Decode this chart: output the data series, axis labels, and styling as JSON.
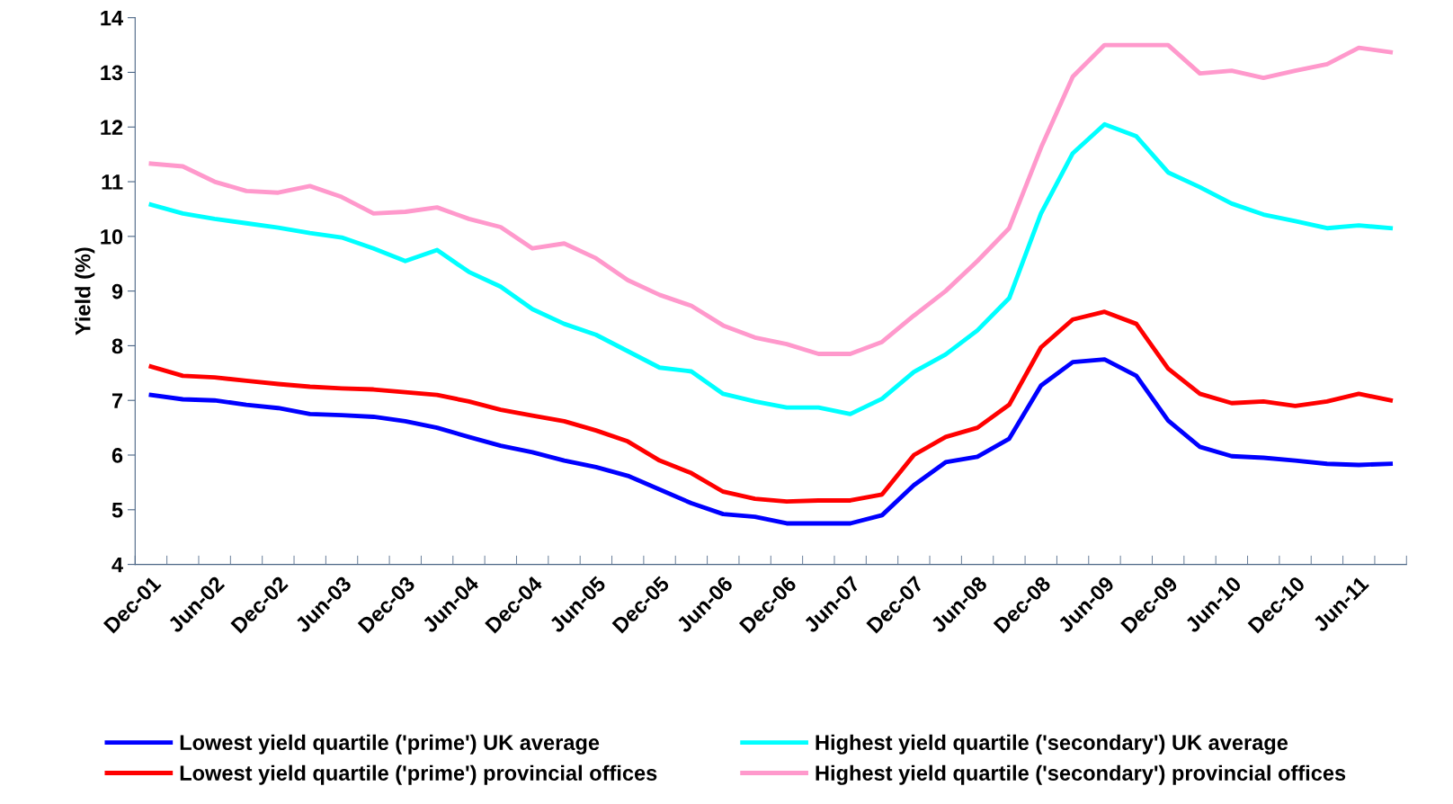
{
  "chart_data": {
    "type": "line",
    "ylabel": "Yield (%)",
    "categories": [
      "Dec-01",
      null,
      "Jun-02",
      null,
      "Dec-02",
      null,
      "Jun-03",
      null,
      "Dec-03",
      null,
      "Jun-04",
      null,
      "Dec-04",
      null,
      "Jun-05",
      null,
      "Dec-05",
      null,
      "Jun-06",
      null,
      "Dec-06",
      null,
      "Jun-07",
      null,
      "Dec-07",
      null,
      "Jun-08",
      null,
      "Dec-08",
      null,
      "Jun-09",
      null,
      "Dec-09",
      null,
      "Jun-10",
      null,
      "Dec-10",
      null,
      "Jun-11",
      null
    ],
    "series": [
      {
        "name": "Lowest yield quartile ('prime') UK average",
        "color": "#0000ff",
        "values": [
          7.1,
          7.02,
          7.0,
          6.92,
          6.86,
          6.75,
          6.73,
          6.7,
          6.62,
          6.5,
          6.33,
          6.17,
          6.05,
          5.9,
          5.78,
          5.62,
          5.37,
          5.12,
          4.92,
          4.87,
          4.75,
          4.75,
          4.75,
          4.9,
          5.45,
          5.87,
          5.97,
          6.3,
          7.27,
          7.7,
          7.75,
          7.45,
          6.63,
          6.15,
          5.98,
          5.95,
          5.9,
          5.84,
          5.82,
          5.84
        ]
      },
      {
        "name": "Highest yield quartile ('secondary') UK average",
        "color": "#00ffff",
        "values": [
          10.58,
          10.42,
          10.32,
          10.24,
          10.16,
          10.06,
          9.98,
          9.78,
          9.55,
          9.75,
          9.35,
          9.08,
          8.67,
          8.4,
          8.2,
          7.9,
          7.6,
          7.53,
          7.12,
          6.98,
          6.87,
          6.87,
          6.75,
          7.03,
          7.52,
          7.84,
          8.28,
          8.87,
          10.42,
          11.52,
          12.05,
          11.83,
          11.17,
          10.9,
          10.6,
          10.4,
          10.28,
          10.15,
          10.2,
          10.15
        ]
      },
      {
        "name": "Lowest yield quartile ('prime') provincial offices",
        "color": "#ff0000",
        "values": [
          7.62,
          7.45,
          7.42,
          7.36,
          7.3,
          7.25,
          7.22,
          7.2,
          7.15,
          7.1,
          6.98,
          6.83,
          6.72,
          6.62,
          6.45,
          6.25,
          5.9,
          5.67,
          5.33,
          5.2,
          5.15,
          5.17,
          5.17,
          5.28,
          6.0,
          6.33,
          6.5,
          6.92,
          7.97,
          8.48,
          8.62,
          8.4,
          7.58,
          7.12,
          6.95,
          6.98,
          6.9,
          6.98,
          7.12,
          7.0
        ]
      },
      {
        "name": "Highest yield quartile ('secondary') provincial offices",
        "color": "#ff99cc",
        "values": [
          11.33,
          11.28,
          11.0,
          10.83,
          10.8,
          10.92,
          10.72,
          10.42,
          10.45,
          10.53,
          10.32,
          10.17,
          9.78,
          9.87,
          9.6,
          9.2,
          8.93,
          8.73,
          8.37,
          8.15,
          8.03,
          7.85,
          7.85,
          8.07,
          8.55,
          9.0,
          9.55,
          10.15,
          11.62,
          12.92,
          13.5,
          13.5,
          13.5,
          12.98,
          13.03,
          12.9,
          13.03,
          13.15,
          13.45,
          13.37
        ]
      }
    ],
    "ylim": [
      4,
      14
    ],
    "yticks": [
      4,
      5,
      6,
      7,
      8,
      9,
      10,
      11,
      12,
      13,
      14
    ],
    "grid": false,
    "legend": "bottom",
    "marker": "none",
    "line_style": "solid"
  }
}
